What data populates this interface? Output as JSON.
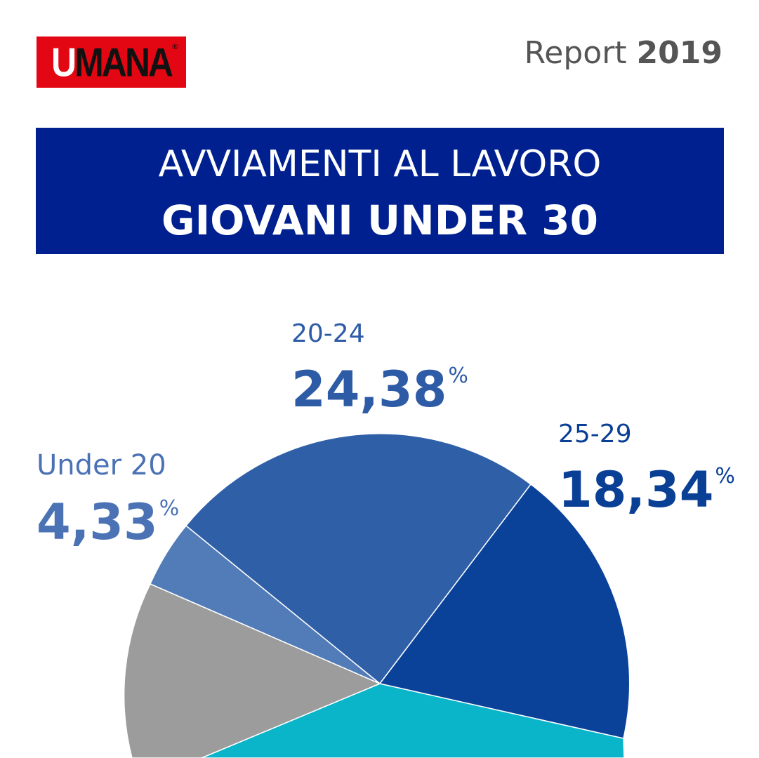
{
  "logo": {
    "brand": "UMANA",
    "first_letter": "U",
    "rest": "MANA",
    "registered": "®"
  },
  "report": {
    "label": "Report",
    "year": "2019"
  },
  "banner": {
    "line1": "AVVIAMENTI AL LAVORO",
    "line2": "GIOVANI UNDER 30"
  },
  "colors": {
    "logo_red": "#e30613",
    "banner_blue": "#002090",
    "slice_under20": "#517cb8",
    "slice_20_24": "#2e5fa7",
    "slice_25_29": "#0a4299",
    "slice_teal": "#0ab5c9",
    "slice_gray": "#9d9c9c"
  },
  "labels": {
    "under20": {
      "name": "Under 20",
      "value": "4,33",
      "pct": "%"
    },
    "a20_24": {
      "name": "20-24",
      "value": "24,38",
      "pct": "%"
    },
    "a25_29": {
      "name": "25-29",
      "value": "18,34",
      "pct": "%"
    }
  },
  "chart_data": {
    "type": "pie",
    "categories": [
      "Under 20",
      "20-24",
      "25-29"
    ],
    "values": [
      4.33,
      24.38,
      18.34
    ],
    "unit": "%"
  }
}
